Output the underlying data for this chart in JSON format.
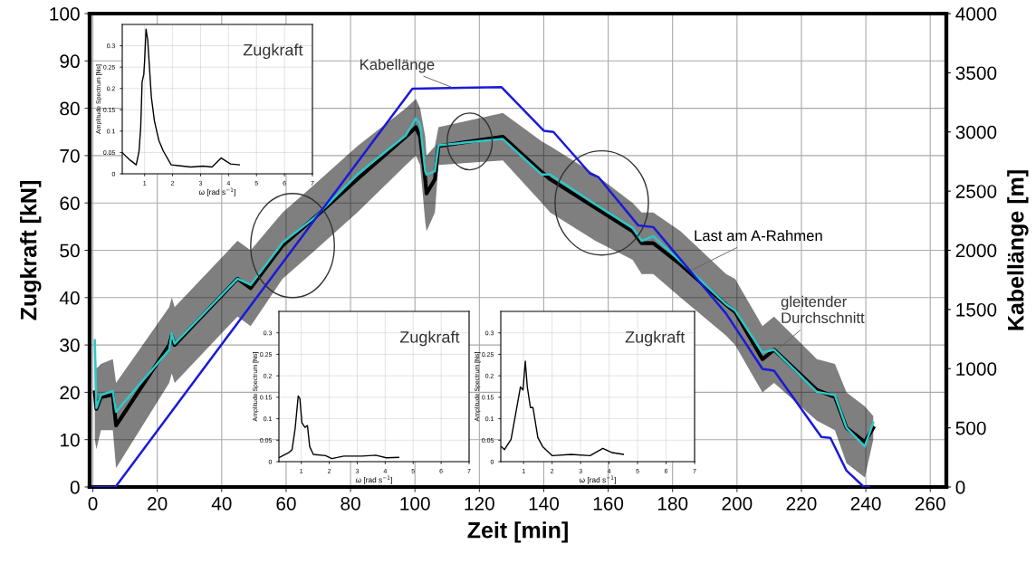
{
  "chart_data": [
    {
      "type": "line",
      "xlabel": "Zeit [min]",
      "ylabel": "Zugkraft [kN]",
      "y2label": "Kabellänge [m]",
      "xlim": [
        -1,
        265
      ],
      "xticks": [
        0,
        20,
        40,
        60,
        80,
        100,
        120,
        140,
        160,
        180,
        200,
        220,
        240,
        260
      ],
      "ylim": [
        0,
        100
      ],
      "yticks": [
        0,
        10,
        20,
        30,
        40,
        50,
        60,
        70,
        80,
        90,
        100
      ],
      "y2lim": [
        0,
        4000
      ],
      "y2ticks": [
        0,
        500,
        1000,
        1500,
        2000,
        2500,
        3000,
        3500,
        4000
      ],
      "grid": true,
      "legend": false,
      "marker": "none",
      "line_style": "solid",
      "series": [
        {
          "name": "Last am A-Rahmen",
          "color": "#000000",
          "x": [
            0.6,
            1.1,
            2.5,
            6.2,
            7.2,
            23.7,
            24.5,
            25.4,
            44.9,
            49,
            58.9,
            69,
            82.1,
            97.2,
            100.3,
            101.6,
            103.2,
            103.6,
            106.2,
            107.3,
            127.3,
            139.4,
            142,
            156,
            167.6,
            170.4,
            174,
            182.5,
            196.6,
            199.4,
            207.9,
            211.5,
            224.8,
            230.4,
            234,
            239.7,
            242.3
          ],
          "values": [
            20,
            16.5,
            19,
            19.5,
            13,
            30,
            32,
            30,
            44,
            42,
            51,
            57,
            65,
            74,
            76,
            74,
            65,
            62,
            65,
            72,
            74,
            66.5,
            65,
            59,
            54,
            51.5,
            51.5,
            47,
            38.5,
            37,
            27,
            29,
            20.5,
            19,
            12.5,
            9.5,
            12.5
          ],
          "lower": [
            10,
            8,
            12,
            12,
            4,
            22,
            24,
            22,
            36,
            34,
            44,
            50,
            58,
            68,
            70,
            68,
            56,
            54,
            58,
            68,
            69,
            60,
            58,
            52,
            48,
            45,
            45,
            40,
            32,
            30,
            20,
            22,
            14,
            12,
            5,
            2,
            10
          ],
          "upper": [
            31,
            25,
            26,
            27,
            22,
            38,
            40,
            38,
            52,
            50,
            58,
            64,
            72,
            80,
            82,
            80,
            74,
            70,
            72,
            76,
            79,
            73,
            72,
            66,
            60,
            58,
            58,
            54,
            45,
            44,
            34,
            36,
            27,
            26,
            20,
            17,
            15
          ]
        },
        {
          "name": "gleitender\nDurchschnitt",
          "color": "#2ec8c8",
          "x": [
            0.6,
            1.1,
            2.5,
            6.2,
            7.2,
            23.7,
            24.5,
            25.4,
            44.9,
            49,
            58.9,
            69,
            82.1,
            97.2,
            100.3,
            101.6,
            103.2,
            103.6,
            106.2,
            107.3,
            127.3,
            139.4,
            142,
            156,
            167.6,
            170.4,
            174,
            182.5,
            196.6,
            199.4,
            207.9,
            211.5,
            224.8,
            230.4,
            234,
            239.7,
            242.3
          ],
          "values": [
            31,
            16.7,
            19.4,
            20.3,
            15.9,
            29,
            32.4,
            30.3,
            44,
            42.7,
            51.6,
            57,
            66,
            74.3,
            77.9,
            76.6,
            66.7,
            66,
            66.7,
            72.2,
            73.5,
            66,
            66,
            59.7,
            54.7,
            52,
            53,
            47.6,
            38.6,
            37.3,
            28.4,
            29,
            20.1,
            19.4,
            12.5,
            8.6,
            13.6
          ]
        },
        {
          "name": "Kabellänge",
          "color": "#1a1ad8",
          "axis": "y2",
          "x": [
            0,
            7,
            99.2,
            126.9,
            140,
            143,
            154.4,
            157,
            169.3,
            174,
            196.6,
            207.9,
            211.5,
            226.2,
            229,
            234,
            239.4,
            241
          ],
          "values": [
            0,
            0,
            3366,
            3378,
            3010,
            3000,
            2648,
            2618,
            2211,
            2196,
            1466,
            998,
            983,
            422,
            415,
            138,
            0,
            0
          ]
        }
      ]
    },
    {
      "type": "line",
      "xlabel": "ω [rad s$^{−1}$]",
      "ylabel": "Amplitude Spectrum [Ns]",
      "annotations": [
        "Zugkraft"
      ],
      "xlim": [
        0.2,
        7
      ],
      "xticks": [
        1,
        2,
        3,
        4,
        5,
        6,
        7
      ],
      "ylim": [
        0,
        0.35
      ],
      "yticks": [
        0,
        0.05,
        0.1,
        0.15,
        0.2,
        0.25,
        0.3
      ],
      "grid": true,
      "marker": "none",
      "series": [
        {
          "color": "#000000",
          "x": [
            0.21,
            0.48,
            0.7,
            0.8,
            0.86,
            0.91,
            0.97,
            1.0,
            1.05,
            1.11,
            1.24,
            1.35,
            1.51,
            1.67,
            1.95,
            2.22,
            2.65,
            3.09,
            3.41,
            3.74,
            4.07,
            4.39
          ],
          "values": [
            0.049,
            0.032,
            0.021,
            0.053,
            0.109,
            0.215,
            0.233,
            0.265,
            0.339,
            0.314,
            0.18,
            0.124,
            0.078,
            0.053,
            0.021,
            0.019,
            0.016,
            0.018,
            0.016,
            0.037,
            0.023,
            0.021
          ]
        }
      ]
    },
    {
      "type": "line",
      "xlabel": "ω [rad s$^{−1}$]",
      "ylabel": "Amplitude Spectrum [Ns]",
      "annotations": [
        "Zugkraft"
      ],
      "xlim": [
        0.2,
        7
      ],
      "xticks": [
        1,
        2,
        3,
        4,
        5,
        6,
        7
      ],
      "ylim": [
        0,
        0.35
      ],
      "yticks": [
        0,
        0.05,
        0.1,
        0.15,
        0.2,
        0.25,
        0.3
      ],
      "grid": true,
      "marker": "none",
      "series": [
        {
          "color": "#000000",
          "x": [
            0.22,
            0.57,
            0.67,
            0.78,
            0.89,
            0.95,
            1.02,
            1.13,
            1.22,
            1.3,
            1.43,
            1.87,
            2.09,
            2.52,
            3.17,
            3.66,
            4.04,
            4.48
          ],
          "values": [
            0.01,
            0.022,
            0.028,
            0.077,
            0.153,
            0.147,
            0.091,
            0.08,
            0.084,
            0.035,
            0.017,
            0.014,
            0.007,
            0.013,
            0.013,
            0.015,
            0.009,
            0.01
          ]
        }
      ]
    },
    {
      "type": "line",
      "xlabel": "ω [rad s$^{−1}$]",
      "ylabel": "Amplitude Spectrum [Ns]",
      "annotations": [
        "Zugkraft"
      ],
      "xlim": [
        0.2,
        7
      ],
      "xticks": [
        1,
        2,
        3,
        4,
        5,
        6,
        7
      ],
      "ylim": [
        0,
        0.35
      ],
      "yticks": [
        0,
        0.05,
        0.1,
        0.15,
        0.2,
        0.25,
        0.3
      ],
      "grid": true,
      "marker": "none",
      "series": [
        {
          "color": "#000000",
          "x": [
            0.22,
            0.33,
            0.56,
            0.78,
            0.89,
            0.98,
            1.06,
            1.13,
            1.24,
            1.33,
            1.5,
            1.67,
            2.0,
            2.67,
            3.33,
            3.78,
            4.11,
            4.5
          ],
          "values": [
            0.035,
            0.028,
            0.052,
            0.133,
            0.174,
            0.167,
            0.234,
            0.174,
            0.126,
            0.126,
            0.056,
            0.035,
            0.014,
            0.017,
            0.014,
            0.031,
            0.021,
            0.017
          ]
        }
      ]
    }
  ]
}
